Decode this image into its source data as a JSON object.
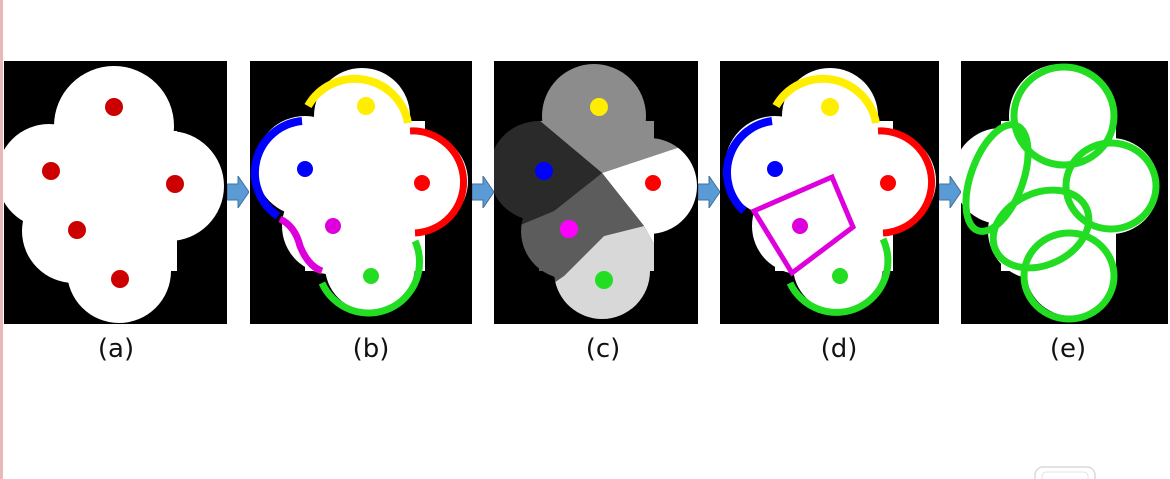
{
  "captions": {
    "a": "(a)",
    "b": "(b)",
    "c": "(c)",
    "d": "(d)",
    "e": "(e)"
  },
  "colors": {
    "background": "#000000",
    "shape": "#ffffff",
    "seed": "#cc0000",
    "yellow": "#ffee00",
    "red": "#ff0000",
    "blue": "#0000ff",
    "magenta": "#dd00dd",
    "green": "#22dd22",
    "arrow": "#5b9bd5"
  },
  "icons": {
    "arrow": "right-arrow-icon"
  }
}
